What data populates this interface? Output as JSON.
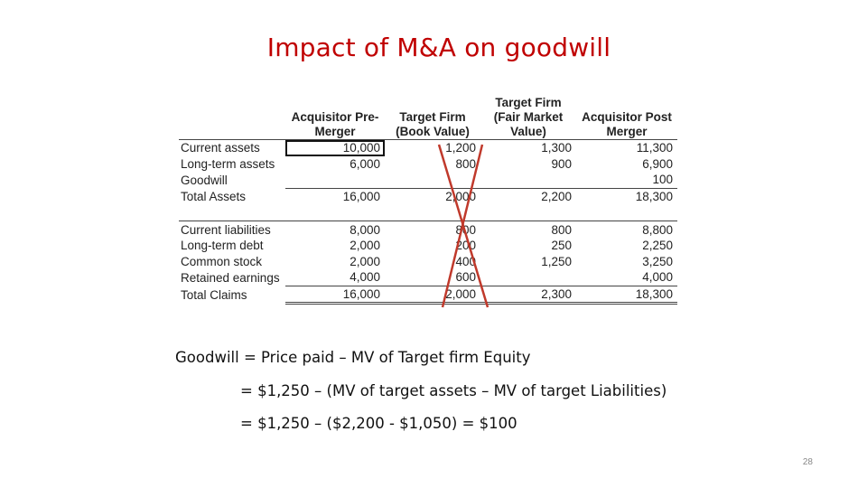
{
  "title": "Impact of M&A on goodwill",
  "table": {
    "headers": [
      {
        "lines": [
          "",
          ""
        ]
      },
      {
        "lines": [
          "Acquisitor Pre-",
          "Merger"
        ]
      },
      {
        "lines": [
          "Target Firm",
          "(Book Value)"
        ]
      },
      {
        "lines": [
          "Target Firm",
          "(Fair Market",
          "Value)"
        ]
      },
      {
        "lines": [
          "Acquisitor Post",
          "Merger"
        ]
      }
    ],
    "rows": [
      {
        "label": "Current assets",
        "values": [
          "10,000",
          "1,200",
          "1,300",
          "11,300"
        ]
      },
      {
        "label": "Long-term assets",
        "values": [
          "6,000",
          "800",
          "900",
          "6,900"
        ]
      },
      {
        "label": "Goodwill",
        "values": [
          "",
          "",
          "",
          "100"
        ]
      },
      {
        "label": "Total Assets",
        "values": [
          "16,000",
          "2,000",
          "2,200",
          "18,300"
        ]
      },
      {
        "label": "",
        "values": [
          "",
          "",
          "",
          ""
        ]
      },
      {
        "label": "Current liabilities",
        "values": [
          "8,000",
          "800",
          "800",
          "8,800"
        ]
      },
      {
        "label": "Long-term debt",
        "values": [
          "2,000",
          "200",
          "250",
          "2,250"
        ]
      },
      {
        "label": "Common stock",
        "values": [
          "2,000",
          "400",
          "1,250",
          "3,250"
        ]
      },
      {
        "label": "Retained earnings",
        "values": [
          "4,000",
          "600",
          "",
          "4,000"
        ]
      },
      {
        "label": "Total Claims",
        "values": [
          "16,000",
          "2,000",
          "2,300",
          "18,300"
        ]
      }
    ]
  },
  "cross_out_color": "#c0392b",
  "formulas": [
    "Goodwill = Price paid – MV of Target firm Equity",
    "= $1,250 – (MV of target assets – MV of target Liabilities)",
    "= $1,250 – ($2,200 - $1,050) = $100"
  ],
  "page_number": "28"
}
